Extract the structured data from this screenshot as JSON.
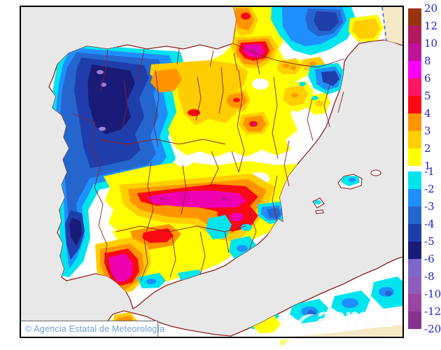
{
  "map": {
    "type": "temperature anomaly contour map",
    "area": "Iberian Peninsula, Balearic Islands and northern Africa",
    "attribution": "© Agencia Estatal de Meteorología",
    "watermark": "aemet",
    "meridian_label": "0°",
    "palette": {
      "sea": "#E8E8E8",
      "land": "#FFFFFF",
      "outside_domain": "#F5E9C6",
      "coast_and_borders": "#8B2020",
      "frame": "#000000",
      "domain_edge_dash": "#4169E1",
      "attribution_text": "#6FA0D2",
      "meridian_label_color": "#FFFF00",
      "watermark_color": "rgba(255,255,255,0.82)"
    },
    "anomaly_regions": [
      {
        "area": "Galicia and northwest interior",
        "anomaly": "-3 to -6, spots of -6 to -8"
      },
      {
        "area": "Western and central Portugal coast",
        "anomaly": "-2 to -6"
      },
      {
        "area": "Northern plateau (Burgos - La Rioja)",
        "anomaly": "+1 to +4"
      },
      {
        "area": "Navarra / upper Ebro hotspot",
        "anomaly": "+4 to +8"
      },
      {
        "area": "Southwestern France",
        "anomaly": "+1 to +3 with -2 to -4 pocket"
      },
      {
        "area": "Pyrenees and Girona coast",
        "anomaly": "-2 to -4"
      },
      {
        "area": "Extremadura - Toledo belt",
        "anomaly": "+4 to +8"
      },
      {
        "area": "Huelva - Sevilla southwest hotspot",
        "anomaly": "+4 to +8"
      },
      {
        "area": "Eastern Andalusia and southeast interior",
        "anomaly": "-1 to -2"
      },
      {
        "area": "Valencia coast pocket",
        "anomaly": "-2 to -4"
      },
      {
        "area": "Balearic Islands",
        "anomaly": "-1 to -2"
      },
      {
        "area": "Northern Africa strip",
        "anomaly": "-1 to -4"
      }
    ]
  },
  "legend": {
    "text_color": "#2222CC",
    "blocks": [
      {
        "top_label": "20",
        "color": "#97330E"
      },
      {
        "top_label": "12",
        "color": "#B01A5C"
      },
      {
        "top_label": "10",
        "color": "#C01299"
      },
      {
        "top_label": "8",
        "color": "#FB00FB"
      },
      {
        "top_label": "6",
        "color": "#FF1566"
      },
      {
        "top_label": "5",
        "color": "#FA0A14"
      },
      {
        "top_label": "4",
        "color": "#FF9400"
      },
      {
        "top_label": "3",
        "color": "#FFCE00"
      },
      {
        "top_label": "2",
        "color": "#FFFF00",
        "bottom_label": "1",
        "gap_after": 8
      },
      {
        "top_label": "-1",
        "color": "#00E4EE"
      },
      {
        "top_label": "-2",
        "color": "#1F8FFF"
      },
      {
        "top_label": "-3",
        "color": "#2566CE"
      },
      {
        "top_label": "-4",
        "color": "#1F3EAC"
      },
      {
        "top_label": "-5",
        "color": "#1A1B78"
      },
      {
        "top_label": "-6",
        "color": "#7C68CA"
      },
      {
        "top_label": "-8",
        "color": "#8F5CBE"
      },
      {
        "top_label": "-10",
        "color": "#9A45A4"
      },
      {
        "top_label": "-12",
        "color": "#86338E",
        "bottom_label": "-20"
      }
    ]
  }
}
